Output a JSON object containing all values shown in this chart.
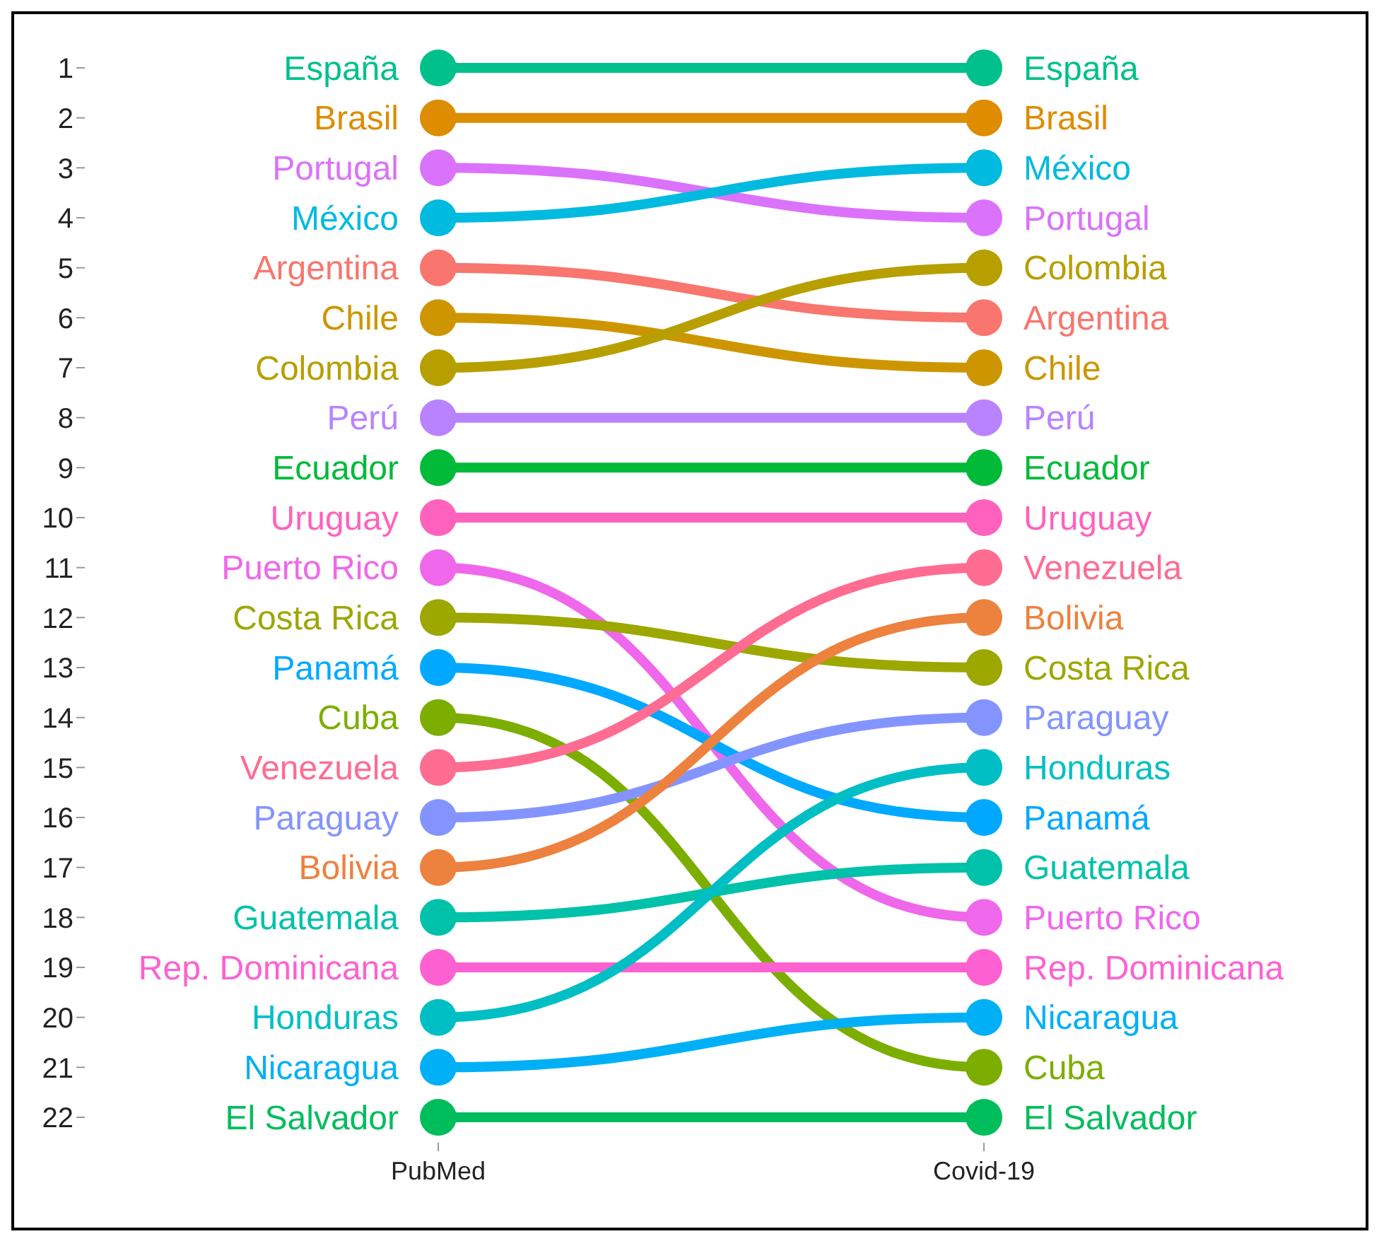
{
  "chart_data": {
    "type": "line",
    "categories": [
      "PubMed",
      "Covid-19"
    ],
    "ylim": [
      22,
      1
    ],
    "yticks": [
      1,
      2,
      3,
      4,
      5,
      6,
      7,
      8,
      9,
      10,
      11,
      12,
      13,
      14,
      15,
      16,
      17,
      18,
      19,
      20,
      21,
      22
    ],
    "marker": "circle",
    "line_style": "solid",
    "series": [
      {
        "name": "España",
        "color": "#00c08b",
        "values": [
          1,
          1
        ]
      },
      {
        "name": "Brasil",
        "color": "#de8c00",
        "values": [
          2,
          2
        ]
      },
      {
        "name": "Portugal",
        "color": "#db72fb",
        "values": [
          3,
          4
        ]
      },
      {
        "name": "México",
        "color": "#00bae0",
        "values": [
          4,
          3
        ]
      },
      {
        "name": "Argentina",
        "color": "#f8766d",
        "values": [
          5,
          6
        ]
      },
      {
        "name": "Chile",
        "color": "#cd9600",
        "values": [
          6,
          7
        ]
      },
      {
        "name": "Colombia",
        "color": "#b79f00",
        "values": [
          7,
          5
        ]
      },
      {
        "name": "Perú",
        "color": "#b983ff",
        "values": [
          8,
          8
        ]
      },
      {
        "name": "Ecuador",
        "color": "#00ba38",
        "values": [
          9,
          9
        ]
      },
      {
        "name": "Uruguay",
        "color": "#ff62bc",
        "values": [
          10,
          10
        ]
      },
      {
        "name": "Puerto Rico",
        "color": "#ef67eb",
        "values": [
          11,
          18
        ]
      },
      {
        "name": "Costa Rica",
        "color": "#9ca700",
        "values": [
          12,
          13
        ]
      },
      {
        "name": "Panamá",
        "color": "#00a9ff",
        "values": [
          13,
          16
        ]
      },
      {
        "name": "Cuba",
        "color": "#7cae00",
        "values": [
          14,
          21
        ]
      },
      {
        "name": "Venezuela",
        "color": "#ff6c91",
        "values": [
          15,
          11
        ]
      },
      {
        "name": "Paraguay",
        "color": "#8494ff",
        "values": [
          16,
          14
        ]
      },
      {
        "name": "Bolivia",
        "color": "#ed813e",
        "values": [
          17,
          12
        ]
      },
      {
        "name": "Guatemala",
        "color": "#00c1aa",
        "values": [
          18,
          17
        ]
      },
      {
        "name": "Rep. Dominicana",
        "color": "#fd61d1",
        "values": [
          19,
          19
        ]
      },
      {
        "name": "Honduras",
        "color": "#00bfc4",
        "values": [
          20,
          15
        ]
      },
      {
        "name": "Nicaragua",
        "color": "#00b0f6",
        "values": [
          21,
          20
        ]
      },
      {
        "name": "El Salvador",
        "color": "#00bd5c",
        "values": [
          22,
          22
        ]
      }
    ]
  }
}
